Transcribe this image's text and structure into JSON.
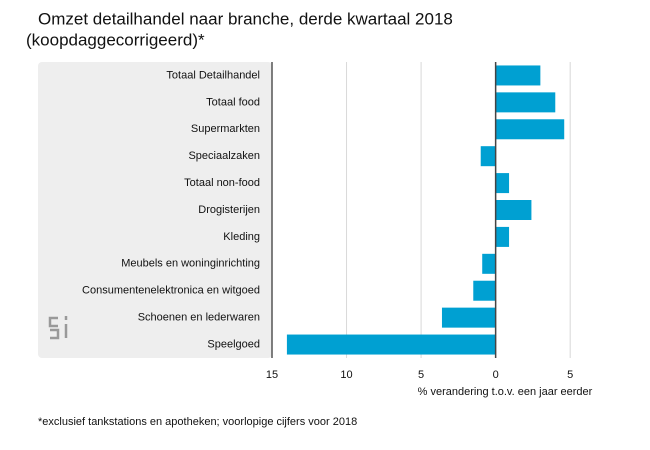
{
  "chart_data": {
    "type": "hbar",
    "title": "Omzet detailhandel naar branche, derde kwartaal 2018",
    "subtitle": "(koopdaggecorrigeerd)*",
    "xlabel": "% verandering t.o.v. een jaar eerder",
    "footnote": "*exclusief tankstations en apotheken; voorlopige cijfers voor 2018",
    "categories": [
      "Totaal Detailhandel",
      "Totaal food",
      "Supermarkten",
      "Speciaalzaken",
      "Totaal non-food",
      "Drogisterijen",
      "Kleding",
      "Meubels en woninginrichting",
      "Consumentenelektronica en witgoed",
      "Schoenen en lederwaren",
      "Speelgoed"
    ],
    "values": [
      3.0,
      4.0,
      4.6,
      -1.0,
      0.9,
      2.4,
      0.9,
      -0.9,
      -1.5,
      -3.6,
      -14.0
    ],
    "color": "#00a0d2",
    "xlim": [
      -15,
      7
    ],
    "xticks": [
      {
        "value": -15,
        "label": "15"
      },
      {
        "value": -10,
        "label": "10"
      },
      {
        "value": -5,
        "label": "5"
      },
      0,
      5
    ],
    "grid": true
  }
}
